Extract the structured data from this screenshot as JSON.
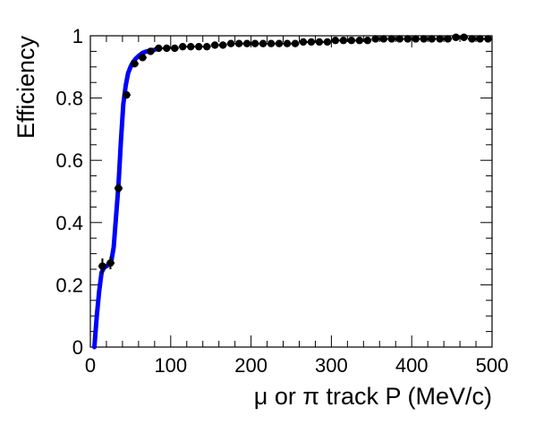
{
  "chart_data": {
    "type": "scatter",
    "title": "",
    "xlabel": "μ or π track P (MeV/c)",
    "ylabel": "Efficiency",
    "xlim": [
      0,
      500
    ],
    "ylim": [
      0,
      1
    ],
    "x_ticks": [
      0,
      100,
      200,
      300,
      400,
      500
    ],
    "x_tick_labels": [
      "0",
      "100",
      "200",
      "300",
      "400",
      "500"
    ],
    "y_ticks": [
      0,
      0.2,
      0.4,
      0.6,
      0.8,
      1
    ],
    "y_tick_labels": [
      "0",
      "0.2",
      "0.4",
      "0.6",
      "0.8",
      "1"
    ],
    "grid": false,
    "legend": "none",
    "series": [
      {
        "kind": "points-with-error-bars",
        "color": "#000000",
        "x": [
          15,
          25,
          35,
          45,
          55,
          65,
          75,
          85,
          95,
          105,
          115,
          125,
          135,
          145,
          155,
          165,
          175,
          185,
          195,
          205,
          215,
          225,
          235,
          245,
          255,
          265,
          275,
          285,
          295,
          305,
          315,
          325,
          335,
          345,
          355,
          365,
          375,
          385,
          395,
          405,
          415,
          425,
          435,
          445,
          455,
          465,
          475,
          485,
          495
        ],
        "y": [
          0.26,
          0.27,
          0.51,
          0.81,
          0.91,
          0.93,
          0.95,
          0.96,
          0.96,
          0.96,
          0.965,
          0.965,
          0.965,
          0.965,
          0.97,
          0.97,
          0.975,
          0.975,
          0.975,
          0.975,
          0.975,
          0.975,
          0.975,
          0.975,
          0.975,
          0.98,
          0.98,
          0.98,
          0.98,
          0.985,
          0.985,
          0.985,
          0.985,
          0.985,
          0.99,
          0.99,
          0.99,
          0.99,
          0.99,
          0.99,
          0.99,
          0.99,
          0.99,
          0.99,
          0.995,
          0.995,
          0.99,
          0.99,
          0.99
        ],
        "y_err": [
          0.025,
          0.02,
          0.015,
          0.012,
          0.01,
          0.008,
          0.008,
          0.006,
          0.006,
          0.006,
          0.005,
          0.005,
          0.005,
          0.005,
          0.005,
          0.005,
          0.005,
          0.005,
          0.005,
          0.005,
          0.005,
          0.005,
          0.005,
          0.005,
          0.005,
          0.005,
          0.005,
          0.005,
          0.005,
          0.005,
          0.005,
          0.005,
          0.005,
          0.005,
          0.005,
          0.005,
          0.005,
          0.005,
          0.005,
          0.005,
          0.005,
          0.005,
          0.005,
          0.005,
          0.005,
          0.005,
          0.005,
          0.005,
          0.005
        ],
        "x_err": 5
      },
      {
        "kind": "fit-line",
        "color": "#0000ff",
        "x": [
          5,
          8,
          11,
          14,
          17,
          20,
          23,
          26,
          29,
          32,
          35,
          38,
          41,
          44,
          47,
          50,
          53,
          56,
          60,
          65,
          70,
          80
        ],
        "y": [
          0.0,
          0.1,
          0.18,
          0.24,
          0.255,
          0.26,
          0.265,
          0.275,
          0.32,
          0.42,
          0.52,
          0.66,
          0.78,
          0.84,
          0.88,
          0.9,
          0.915,
          0.925,
          0.935,
          0.945,
          0.95,
          0.955
        ]
      }
    ]
  }
}
